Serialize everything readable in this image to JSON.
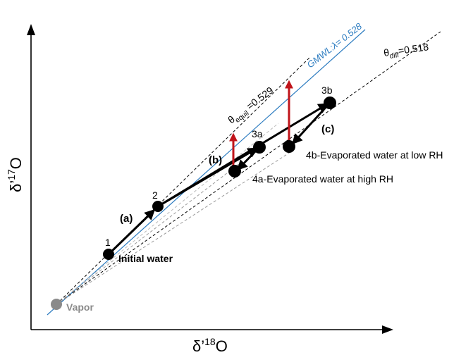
{
  "axes": {
    "x_label": "δ’",
    "x_label_sup": "18",
    "x_label_tail": "O",
    "y_label": "δ’",
    "y_label_sup": "17",
    "y_label_tail": "O"
  },
  "lines": {
    "gmwl": {
      "label_prefix": "GMWL:",
      "label_symbol": "λ",
      "label_value": "= 0.528",
      "color": "#2b7bc0"
    },
    "equil": {
      "label_symbol": "θ",
      "label_sub": "equil",
      "label_value": " =0.529"
    },
    "diff": {
      "label_symbol": "θ",
      "label_sub": "diff",
      "label_value": "=0.518"
    }
  },
  "points": {
    "p1": {
      "label": "1"
    },
    "p2": {
      "label": "2"
    },
    "p3a": {
      "label": "3a"
    },
    "p3b": {
      "label": "3b"
    },
    "vapor": {
      "label": "Vapor",
      "color": "#8a8a8a"
    }
  },
  "steps": {
    "a": "(a)",
    "b": "(b)",
    "c": "(c)"
  },
  "annotations": {
    "initial_water": "Initial water",
    "evap_high_rh": "4a-Evaporated water at high RH",
    "evap_low_rh": "4b-Evaporated water at low RH"
  },
  "colors": {
    "accent_red": "#c0141a",
    "black": "#000000",
    "gmwl_blue": "#2b7bc0"
  }
}
